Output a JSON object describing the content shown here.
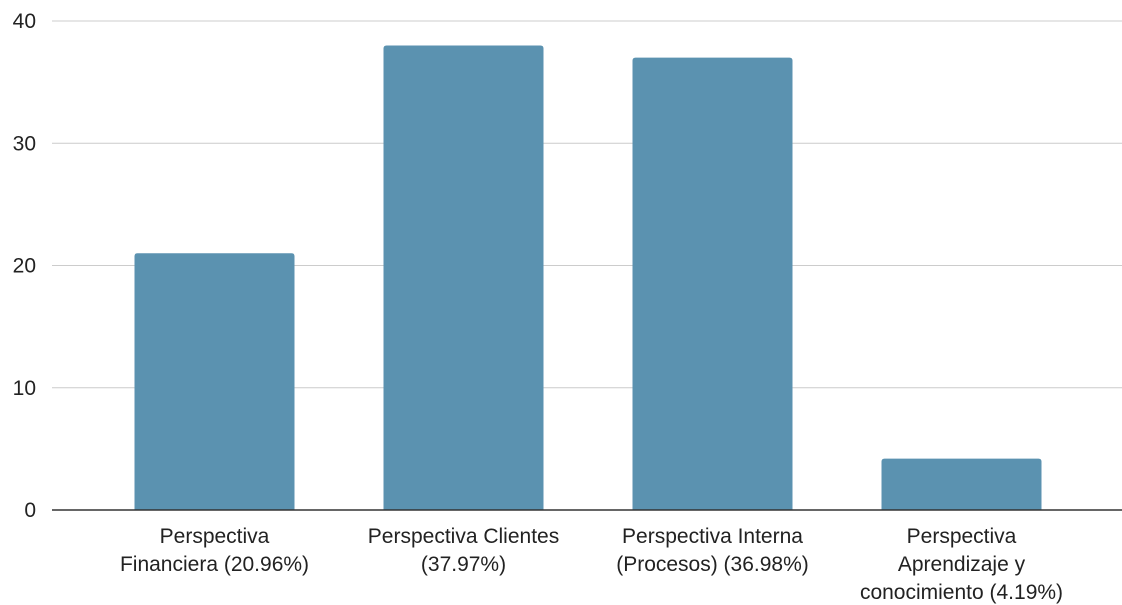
{
  "chart_data": {
    "type": "bar",
    "title": "",
    "xlabel": "",
    "ylabel": "",
    "ylim": [
      0,
      40
    ],
    "yticks": [
      0,
      10,
      20,
      30,
      40
    ],
    "grid": true,
    "legend": "none",
    "bar_color": "#5b92b0",
    "categories": [
      [
        "Perspectiva",
        "Financiera (20.96%)"
      ],
      [
        "Perspectiva Clientes",
        "(37.97%)"
      ],
      [
        "Perspectiva Interna",
        "(Procesos) (36.98%)"
      ],
      [
        "Perspectiva",
        "Aprendizaje y",
        "conocimiento (4.19%)"
      ]
    ],
    "values": [
      21,
      38,
      37,
      4.2
    ]
  }
}
